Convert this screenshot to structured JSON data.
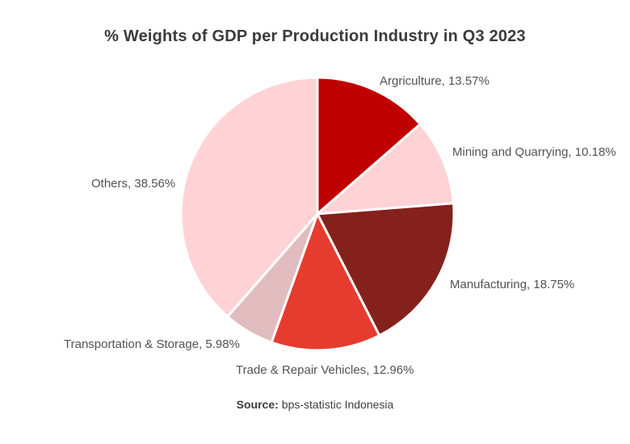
{
  "title": "% Weights of GDP per Production Industry in Q3 2023",
  "source": {
    "prefix": "Source:",
    "text": "bps-statistic Indonesia"
  },
  "chart_data": {
    "type": "pie",
    "title": "% Weights of GDP per Production Industry in Q3 2023",
    "start_angle_deg": 0,
    "direction": "clockwise",
    "legend_position": "none",
    "labels_style": "outside, format 'Name, value%'",
    "slices": [
      {
        "label": "Argriculture",
        "value": 13.57,
        "color": "#C00000",
        "label_text": "Argriculture, 13.57%"
      },
      {
        "label": "Mining and Quarrying",
        "value": 10.18,
        "color": "#FFD2D6",
        "label_text": "Mining and Quarrying, 10.18%"
      },
      {
        "label": "Manufacturing",
        "value": 18.75,
        "color": "#84211C",
        "label_text": "Manufacturing, 18.75%"
      },
      {
        "label": "Trade & Repair Vehicles",
        "value": 12.96,
        "color": "#E63C2F",
        "label_text": "Trade & Repair Vehicles, 12.96%"
      },
      {
        "label": "Transportation & Storage",
        "value": 5.98,
        "color": "#E0BCBE",
        "label_text": "Transportation & Storage, 5.98%"
      },
      {
        "label": "Others",
        "value": 38.56,
        "color": "#FFD3D6",
        "label_text": "Others, 38.56%"
      }
    ]
  }
}
